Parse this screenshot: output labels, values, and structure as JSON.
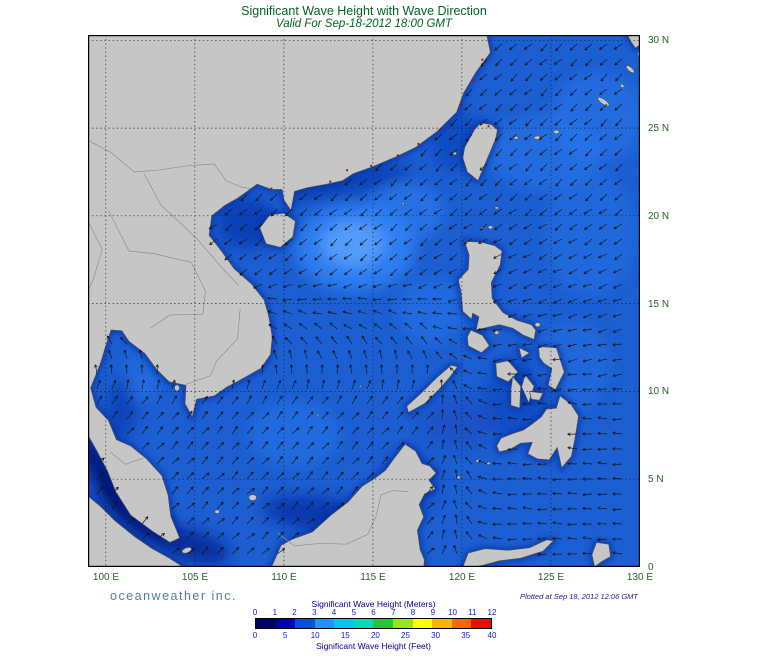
{
  "title": "Significant Wave Height with Wave Direction",
  "subtitle": "Valid For Sep-18-2012 18:00 GMT",
  "branding": "oceanweather inc.",
  "plotted": "Plotted at Sep 18, 2012 12:06 GMT",
  "axes": {
    "x_ticks": [
      "100 E",
      "105 E",
      "110 E",
      "115 E",
      "120 E",
      "125 E",
      "130 E"
    ],
    "y_ticks": [
      "30 N",
      "25 N",
      "20 N",
      "15 N",
      "10 N",
      "5 N",
      "0"
    ]
  },
  "legend": {
    "meters_label": "Significant Wave Height (Meters)",
    "feet_label": "Significant Wave Height (Feet)",
    "meters_ticks": [
      "0",
      "1",
      "2",
      "3",
      "4",
      "5",
      "6",
      "7",
      "8",
      "9",
      "10",
      "11",
      "12"
    ],
    "feet_ticks": [
      "0",
      "5",
      "10",
      "15",
      "20",
      "25",
      "30",
      "35",
      "40"
    ],
    "colors": [
      "#000066",
      "#0000c0",
      "#0052e6",
      "#2a8cff",
      "#00c8f0",
      "#00dcb4",
      "#1ec83c",
      "#96e61e",
      "#ffff00",
      "#ffb400",
      "#ff6400",
      "#f00a00"
    ]
  },
  "map_colors": {
    "ocean_base": "#1b5fd2",
    "land": "#c6c6c6",
    "coast_shallow": "#0a2aa4",
    "grid_line": "#1c1c30",
    "arrow": "#141414",
    "frame": "#000000",
    "country_border": "#8f8f8f",
    "coastal_city_dot": "#8b1c1c"
  },
  "chart_data": {
    "type": "heatmap",
    "title": "Significant Wave Height with Wave Direction",
    "valid_time": "Sep-18-2012 18:00 GMT",
    "plotted_time": "Sep 18, 2012 12:06 GMT",
    "region": {
      "lon_min_e": 99,
      "lon_max_e": 130,
      "lat_min_n": 0,
      "lat_max_n": 30.3
    },
    "grid_interval_deg": 5,
    "x_tick_values_deg_e": [
      100,
      105,
      110,
      115,
      120,
      125,
      130
    ],
    "y_tick_values_deg_n": [
      30,
      25,
      20,
      15,
      10,
      5,
      0
    ],
    "colorbar": {
      "top_scale": {
        "label": "Significant Wave Height (Meters)",
        "ticks": [
          0,
          1,
          2,
          3,
          4,
          5,
          6,
          7,
          8,
          9,
          10,
          11,
          12
        ]
      },
      "bottom_scale": {
        "label": "Significant Wave Height (Feet)",
        "ticks": [
          0,
          5,
          10,
          15,
          20,
          25,
          30,
          35,
          40
        ]
      },
      "colors": [
        "#000066",
        "#0000c0",
        "#0052e6",
        "#2a8cff",
        "#00c8f0",
        "#00dcb4",
        "#1ec83c",
        "#96e61e",
        "#ffff00",
        "#ffb400",
        "#ff6400",
        "#f00a00"
      ]
    },
    "field_estimates_m": [
      {
        "region": "Malacca Strait / far southwest corner",
        "height_m": "0-1"
      },
      {
        "region": "Northern South China Sea storm area (~113-117E, 16-20N)",
        "height_m": "3-4"
      },
      {
        "region": "Open South China Sea",
        "height_m": "2-3"
      },
      {
        "region": "Gulf of Thailand",
        "height_m": "1-3"
      },
      {
        "region": "Philippine Sea / western Pacific",
        "height_m": "2-3"
      },
      {
        "region": "Coastal margins and inner Philippine seas",
        "height_m": "1-2"
      }
    ],
    "wave_direction": [
      {
        "region": "north of ~17N including seas around Taiwan",
        "toward": "SW"
      },
      {
        "region": "central South China Sea 10-17N",
        "toward": "W to NW"
      },
      {
        "region": "southern South China Sea and Gulf of Thailand",
        "toward": "NE"
      },
      {
        "region": "Philippine Sea east of the islands",
        "toward": "W"
      }
    ]
  }
}
